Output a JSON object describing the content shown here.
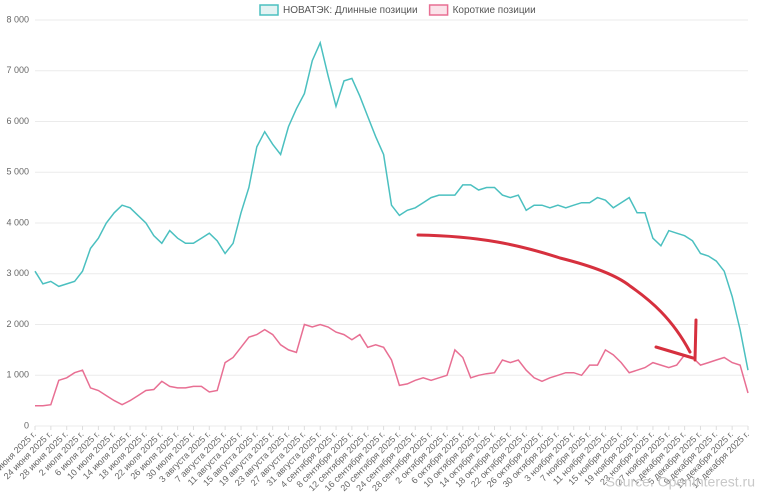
{
  "chart_data": {
    "type": "line",
    "categories": [
      "20 июня 2025 г.",
      null,
      "24 июня 2025 г.",
      null,
      "28 июня 2025 г.",
      null,
      "2 июля 2025 г.",
      null,
      "6 июля 2025 г.",
      null,
      "10 июля 2025 г.",
      null,
      "14 июля 2025 г.",
      null,
      "18 июля 2025 г.",
      null,
      "22 июля 2025 г.",
      null,
      "26 июля 2025 г.",
      null,
      "30 июля 2025 г.",
      null,
      "3 августа 2025 г.",
      null,
      "7 августа 2025 г.",
      null,
      "11 августа 2025 г.",
      null,
      "15 августа 2025 г.",
      null,
      "19 августа 2025 г.",
      null,
      "23 августа 2025 г.",
      null,
      "27 августа 2025 г.",
      null,
      "31 августа 2025 г.",
      null,
      "4 сентября 2025 г.",
      null,
      "8 сентября 2025 г.",
      null,
      "12 сентября 2025 г.",
      null,
      "16 сентября 2025 г.",
      null,
      "20 сентября 2025 г.",
      null,
      "24 сентября 2025 г.",
      null,
      "28 сентября 2025 г.",
      null,
      "2 октября 2025 г.",
      null,
      "6 октября 2025 г.",
      null,
      "10 октября 2025 г.",
      null,
      "14 октября 2025 г.",
      null,
      "18 октября 2025 г.",
      null,
      "22 октября 2025 г.",
      null,
      "26 октября 2025 г.",
      null,
      "30 октября 2025 г.",
      null,
      "3 ноября 2025 г.",
      null,
      "7 ноября 2025 г.",
      null,
      "11 ноября 2025 г.",
      null,
      "15 ноября 2025 г.",
      null,
      "19 ноября 2025 г.",
      null,
      "23 ноября 2025 г.",
      null,
      "27 ноября 2025 г.",
      null,
      "1 декабря 2025 г.",
      null,
      "5 декабря 2025 г.",
      null,
      "9 декабря 2025 г.",
      null,
      "13 декабря 2025 г.",
      null,
      "17 декабря 2025 г."
    ],
    "series": [
      {
        "name": "НОВАТЭК: Длинные позиции",
        "color": "#4bc0c0",
        "fill": "#e3f3f3",
        "values": [
          3050,
          2800,
          2850,
          2750,
          2800,
          2850,
          3050,
          3500,
          3700,
          4000,
          4200,
          4350,
          4300,
          4150,
          4000,
          3750,
          3600,
          3850,
          3700,
          3600,
          3600,
          3700,
          3800,
          3650,
          3400,
          3600,
          4200,
          4700,
          5500,
          5800,
          5550,
          5350,
          5900,
          6250,
          6550,
          7200,
          7550,
          6900,
          6300,
          6800,
          6850,
          6500,
          6100,
          5700,
          5350,
          4350,
          4150,
          4250,
          4300,
          4400,
          4500,
          4550,
          4550,
          4550,
          4750,
          4750,
          4650,
          4700,
          4700,
          4550,
          4500,
          4550,
          4250,
          4350,
          4350,
          4300,
          4350,
          4300,
          4350,
          4400,
          4400,
          4500,
          4450,
          4300,
          4400,
          4500,
          4200,
          4200,
          3700,
          3550,
          3850,
          3800,
          3750,
          3650,
          3400,
          3350,
          3250,
          3050,
          2550,
          1900,
          1100
        ]
      },
      {
        "name": "Короткие позиции",
        "color": "#e86f93",
        "fill": "#fbe3ea",
        "values": [
          400,
          400,
          420,
          900,
          950,
          1050,
          1100,
          750,
          700,
          600,
          500,
          420,
          500,
          600,
          700,
          720,
          880,
          780,
          750,
          750,
          780,
          780,
          670,
          700,
          1250,
          1350,
          1550,
          1750,
          1800,
          1900,
          1800,
          1600,
          1500,
          1450,
          2000,
          1950,
          2000,
          1950,
          1850,
          1800,
          1700,
          1800,
          1550,
          1600,
          1550,
          1300,
          800,
          830,
          900,
          950,
          900,
          950,
          1000,
          1500,
          1350,
          950,
          1000,
          1030,
          1050,
          1300,
          1250,
          1300,
          1100,
          950,
          880,
          950,
          1000,
          1050,
          1050,
          1000,
          1200,
          1200,
          1500,
          1400,
          1250,
          1050,
          1100,
          1150,
          1250,
          1200,
          1150,
          1200,
          1400,
          1350,
          1200,
          1250,
          1300,
          1350,
          1250,
          1200,
          650
        ]
      }
    ],
    "ylim": [
      0,
      8000
    ],
    "yticks": [
      0,
      {
        "value": 1000,
        "label": "1 000"
      },
      {
        "value": 2000,
        "label": "2 000"
      },
      {
        "value": 3000,
        "label": "3 000"
      },
      {
        "value": 4000,
        "label": "4 000"
      },
      {
        "value": 5000,
        "label": "5 000"
      },
      {
        "value": 6000,
        "label": "6 000"
      },
      {
        "value": 7000,
        "label": "7 000"
      },
      {
        "value": 8000,
        "label": "8 000"
      }
    ],
    "grid": true,
    "legend": "top",
    "watermark": "Source: OpenInterest.ru"
  }
}
